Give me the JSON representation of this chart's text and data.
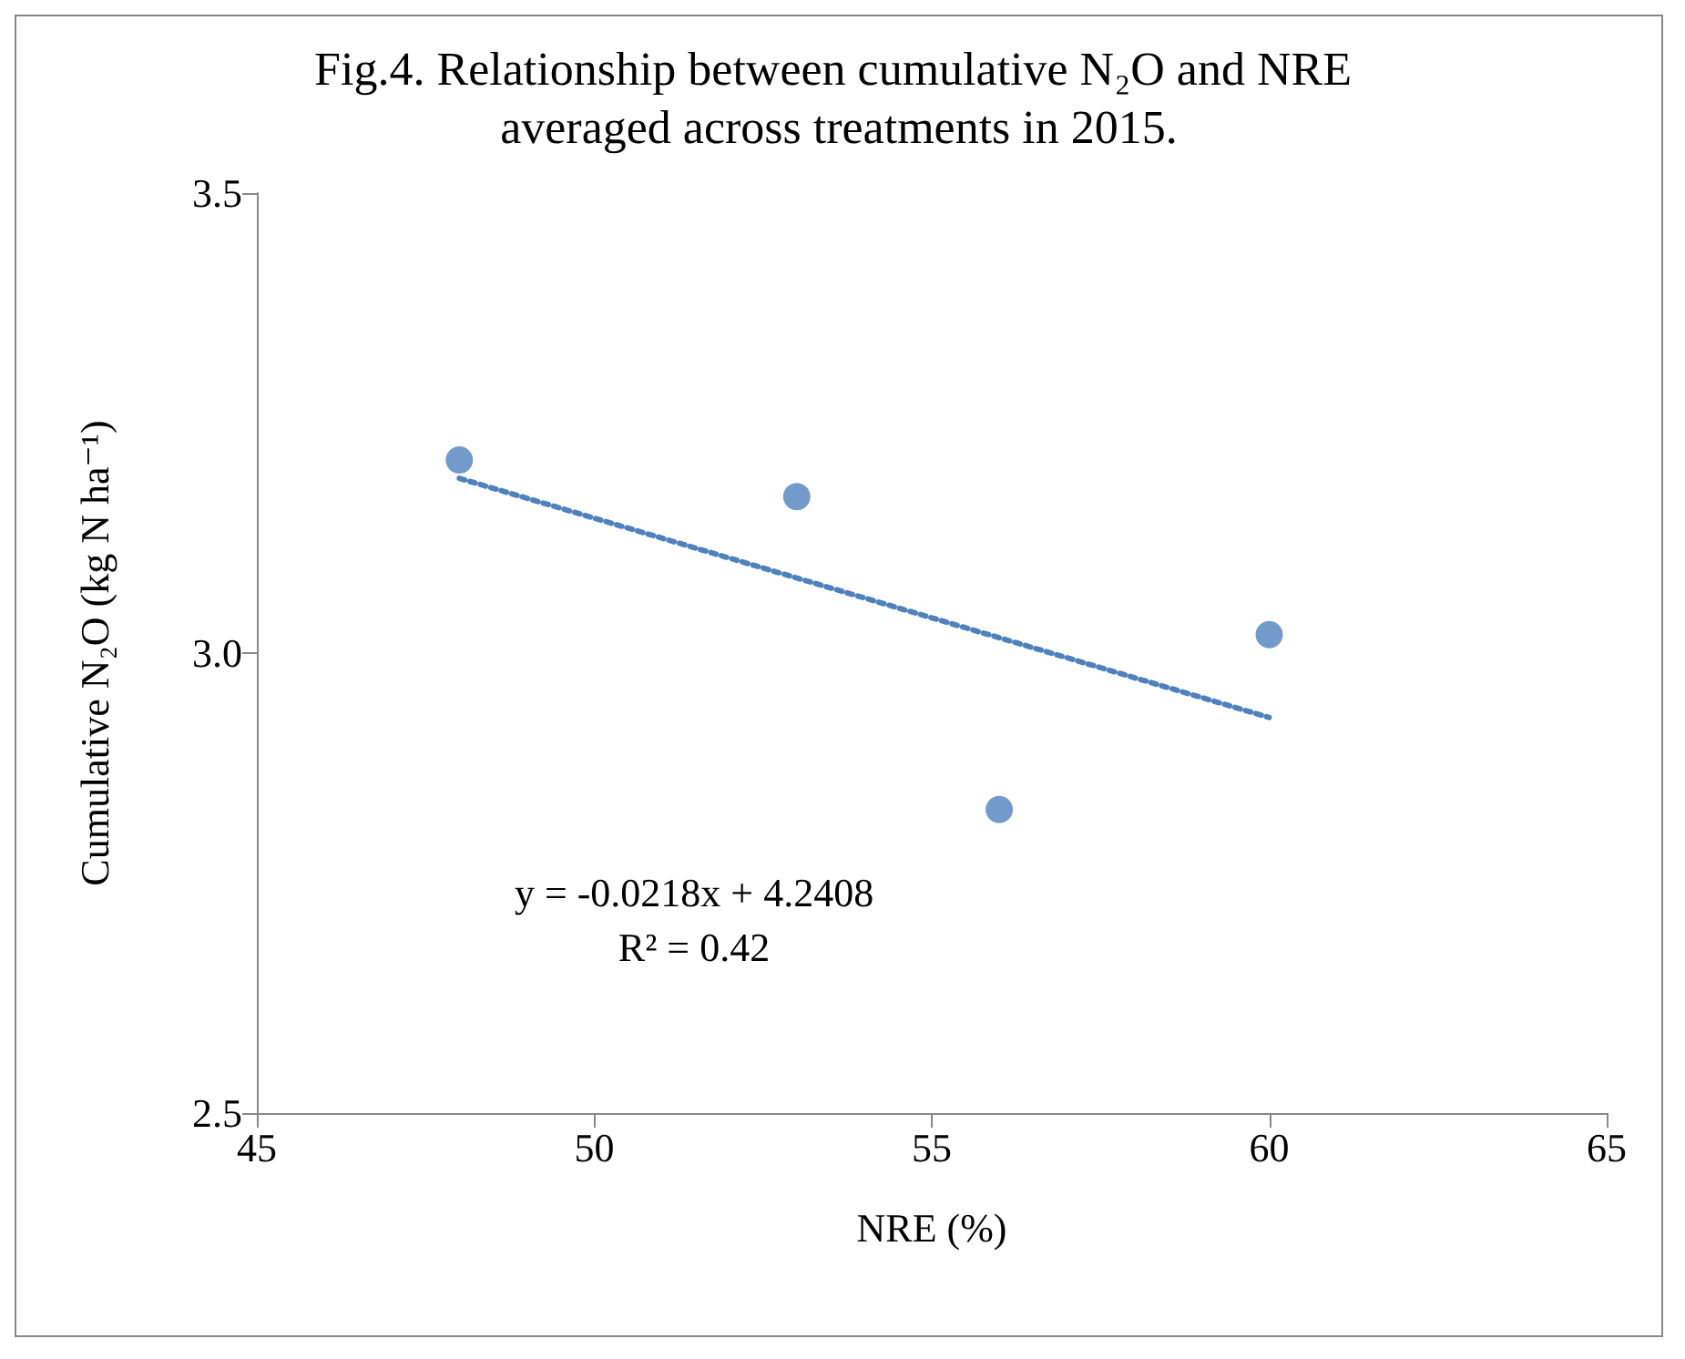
{
  "chart_data": {
    "type": "scatter",
    "title": "Fig.4. Relationship between cumulative N₂O and NRE averaged across treatments in 2015.",
    "xlabel": "NRE (%)",
    "ylabel": "Cumulative N₂O (kg N ha⁻¹)",
    "x": [
      48,
      53,
      56,
      60
    ],
    "series": [
      {
        "color": "#4f81bd",
        "values": [
          3.21,
          3.17,
          2.83,
          3.02
        ]
      },
      {
        "type": "line",
        "x": [
          48,
          60
        ],
        "values": [
          3.19,
          2.93
        ],
        "color": "#4f81bd",
        "line_style": "dotted",
        "marker": "none"
      }
    ],
    "annotations": [
      "y = -0.0218x + 4.2408",
      "R² = 0.42"
    ],
    "xlim": [
      45,
      65
    ],
    "xticks": [
      45,
      50,
      55,
      60,
      65
    ],
    "ylim": [
      2.5,
      3.5
    ],
    "yticks": [
      2.5,
      {
        "value": 3.0,
        "label": "3.0"
      },
      3.5
    ],
    "grid": false,
    "marker": "circle"
  }
}
